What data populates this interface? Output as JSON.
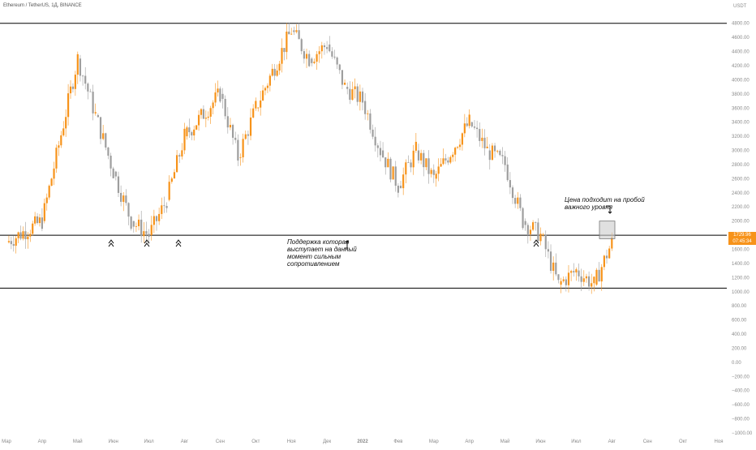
{
  "header": {
    "title": "Ethereum / TetherUS, 1Д, BINANCE"
  },
  "price_tag": {
    "price": "1729.96",
    "countdown": "07:45:34"
  },
  "annotations": {
    "support": [
      "Поддержка которая",
      "выступает на данный",
      "момент сильным",
      "сопротивлением"
    ],
    "breakout": [
      "Цена подходит на пробой",
      "важного уровня"
    ]
  },
  "colors": {
    "up": "#f7931a",
    "down": "#9e9e9e",
    "line": "#000000",
    "tag": "#f7931a",
    "box": "#cccccc"
  },
  "icons": {
    "support_marker": "double-chevron-up-icon",
    "arrow": "arrow-icon"
  },
  "chart_data": {
    "type": "candlestick",
    "y_unit": "USDT",
    "y_ticks": [
      "4800.00",
      "4600.00",
      "4400.00",
      "4200.00",
      "4000.00",
      "3800.00",
      "3600.00",
      "3400.00",
      "3200.00",
      "3000.00",
      "2800.00",
      "2600.00",
      "2400.00",
      "2200.00",
      "2000.00",
      "1800.00",
      "1600.00",
      "1400.00",
      "1200.00",
      "1000.00",
      "800.00",
      "600.00",
      "400.00",
      "200.00",
      "0.00",
      "−200.00",
      "−400.00",
      "−600.00",
      "−800.00",
      "−1000.00"
    ],
    "x_ticks": [
      "Мар",
      "Апр",
      "Май",
      "Июн",
      "Июл",
      "Авг",
      "Сен",
      "Окт",
      "Ноя",
      "Дек",
      "2022",
      "Фев",
      "Мар",
      "Апр",
      "Май",
      "Июн",
      "Июл",
      "Авг",
      "Сен",
      "Окт",
      "Ноя"
    ],
    "ylim": [
      -1000,
      4900
    ],
    "horizontal_levels": [
      4800,
      1800,
      1050
    ],
    "price_path": [
      [
        "Мар",
        1700
      ],
      [
        "Апр",
        2000
      ],
      [
        "Май",
        4300
      ],
      [
        "Май",
        3500
      ],
      [
        "Июн",
        2700
      ],
      [
        "Июн",
        2000
      ],
      [
        "Июл",
        1800
      ],
      [
        "Июл",
        2300
      ],
      [
        "Авг",
        3200
      ],
      [
        "Сен",
        3800
      ],
      [
        "Сен",
        2900
      ],
      [
        "Окт",
        3600
      ],
      [
        "Ноя",
        4700
      ],
      [
        "Ноя",
        4300
      ],
      [
        "Дек",
        4500
      ],
      [
        "Дек",
        3900
      ],
      [
        "2022",
        3700
      ],
      [
        "2022",
        3000
      ],
      [
        "Фев",
        2500
      ],
      [
        "Фев",
        3000
      ],
      [
        "Мар",
        2600
      ],
      [
        "Апр",
        3400
      ],
      [
        "Апр",
        3000
      ],
      [
        "Май",
        2800
      ],
      [
        "Май",
        2000
      ],
      [
        "Июн",
        1800
      ],
      [
        "Июн",
        1100
      ],
      [
        "Июл",
        1300
      ],
      [
        "Июл",
        1100
      ],
      [
        "Авг",
        1700
      ]
    ],
    "support_markers": [
      "Июн",
      "Июн",
      "Июл",
      "Июн"
    ],
    "highlight_box": {
      "from": "Авг",
      "y_range": [
        1750,
        2000
      ]
    },
    "grid": false,
    "legend": "none"
  }
}
